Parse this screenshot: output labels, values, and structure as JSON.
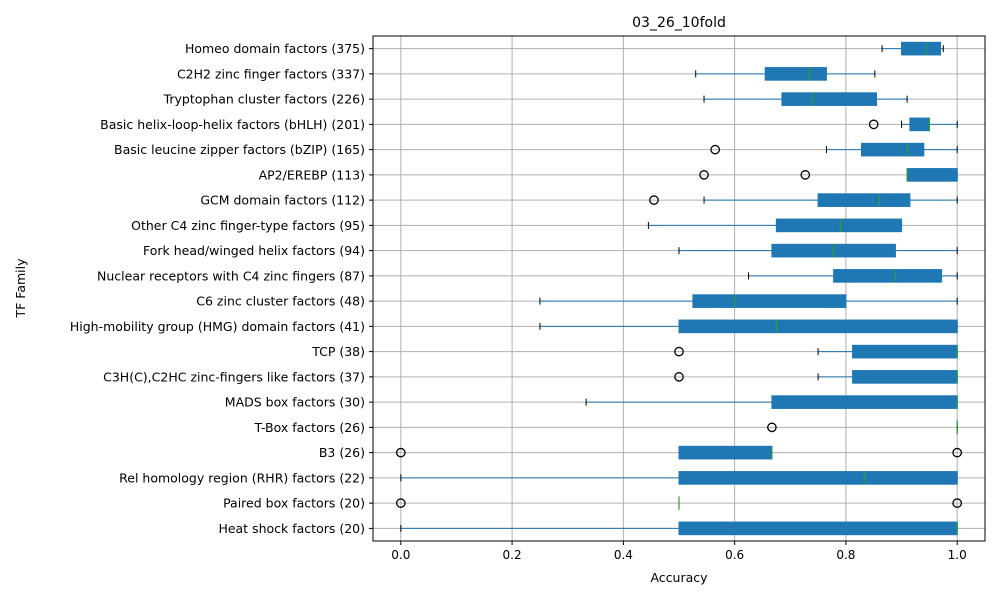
{
  "chart_data": {
    "type": "box",
    "orientation": "horizontal",
    "title": "03_26_10fold",
    "xlabel": "Accuracy",
    "ylabel": "TF Family",
    "xlim": [
      -0.05,
      1.05
    ],
    "xticks": [
      0.0,
      0.2,
      0.4,
      0.6,
      0.8,
      1.0
    ],
    "xtick_labels": [
      "0.0",
      "0.2",
      "0.4",
      "0.6",
      "0.8",
      "1.0"
    ],
    "grid": true,
    "colors": {
      "box": "#1f77b4",
      "median": "#2ca02c",
      "whisker": "#1f77b4",
      "grid": "#b0b0b0",
      "flier": "#000000"
    },
    "categories": [
      "Homeo domain factors (375)",
      "C2H2 zinc finger factors (337)",
      "Tryptophan cluster factors (226)",
      "Basic helix-loop-helix factors (bHLH) (201)",
      "Basic leucine zipper factors (bZIP) (165)",
      "AP2/EREBP (113)",
      "GCM domain factors (112)",
      "Other C4 zinc finger-type factors (95)",
      "Fork head/winged helix factors (94)",
      "Nuclear receptors with C4 zinc fingers (87)",
      "C6 zinc cluster factors (48)",
      "High-mobility group (HMG) domain factors (41)",
      "TCP (38)",
      "C3H(C),C2HC zinc-fingers like factors (37)",
      "MADS box factors (30)",
      "T-Box factors (26)",
      "B3 (26)",
      "Rel homology region (RHR) factors (22)",
      "Paired box factors (20)",
      "Heat shock factors (20)"
    ],
    "boxes": [
      {
        "whislo": 0.865,
        "q1": 0.9,
        "med": 0.945,
        "q3": 0.97,
        "whishi": 0.975,
        "fliers": []
      },
      {
        "whislo": 0.53,
        "q1": 0.655,
        "med": 0.735,
        "q3": 0.765,
        "whishi": 0.852,
        "fliers": []
      },
      {
        "whislo": 0.545,
        "q1": 0.685,
        "med": 0.74,
        "q3": 0.855,
        "whishi": 0.91,
        "fliers": []
      },
      {
        "whislo": 0.9,
        "q1": 0.915,
        "med": 0.95,
        "q3": 0.95,
        "whishi": 1.0,
        "fliers": [
          0.85
        ]
      },
      {
        "whislo": 0.765,
        "q1": 0.828,
        "med": 0.91,
        "q3": 0.94,
        "whishi": 1.0,
        "fliers": [
          0.565
        ]
      },
      {
        "whislo": 0.91,
        "q1": 0.91,
        "med": 0.91,
        "q3": 1.0,
        "whishi": 1.0,
        "fliers": [
          0.545,
          0.727
        ]
      },
      {
        "whislo": 0.545,
        "q1": 0.75,
        "med": 0.86,
        "q3": 0.915,
        "whishi": 1.0,
        "fliers": [
          0.455
        ]
      },
      {
        "whislo": 0.445,
        "q1": 0.675,
        "med": 0.79,
        "q3": 0.9,
        "whishi": 0.9,
        "fliers": []
      },
      {
        "whislo": 0.5,
        "q1": 0.667,
        "med": 0.778,
        "q3": 0.889,
        "whishi": 1.0,
        "fliers": []
      },
      {
        "whislo": 0.625,
        "q1": 0.778,
        "med": 0.889,
        "q3": 0.972,
        "whishi": 1.0,
        "fliers": []
      },
      {
        "whislo": 0.25,
        "q1": 0.525,
        "med": 0.6,
        "q3": 0.8,
        "whishi": 1.0,
        "fliers": []
      },
      {
        "whislo": 0.25,
        "q1": 0.5,
        "med": 0.675,
        "q3": 1.0,
        "whishi": 1.0,
        "fliers": []
      },
      {
        "whislo": 0.75,
        "q1": 0.812,
        "med": 1.0,
        "q3": 1.0,
        "whishi": 1.0,
        "fliers": [
          0.5
        ]
      },
      {
        "whislo": 0.75,
        "q1": 0.812,
        "med": 1.0,
        "q3": 1.0,
        "whishi": 1.0,
        "fliers": [
          0.5
        ]
      },
      {
        "whislo": 0.333,
        "q1": 0.667,
        "med": 1.0,
        "q3": 1.0,
        "whishi": 1.0,
        "fliers": []
      },
      {
        "whislo": 1.0,
        "q1": 1.0,
        "med": 1.0,
        "q3": 1.0,
        "whishi": 1.0,
        "fliers": [
          0.667
        ]
      },
      {
        "whislo": 0.5,
        "q1": 0.5,
        "med": 0.667,
        "q3": 0.667,
        "whishi": 0.667,
        "fliers": [
          0.0,
          1.0
        ]
      },
      {
        "whislo": 0.0,
        "q1": 0.5,
        "med": 0.833,
        "q3": 1.0,
        "whishi": 1.0,
        "fliers": []
      },
      {
        "whislo": 0.5,
        "q1": 0.5,
        "med": 0.5,
        "q3": 0.5,
        "whishi": 0.5,
        "fliers": [
          0.0,
          1.0
        ]
      },
      {
        "whislo": 0.0,
        "q1": 0.5,
        "med": 1.0,
        "q3": 1.0,
        "whishi": 1.0,
        "fliers": []
      }
    ]
  }
}
